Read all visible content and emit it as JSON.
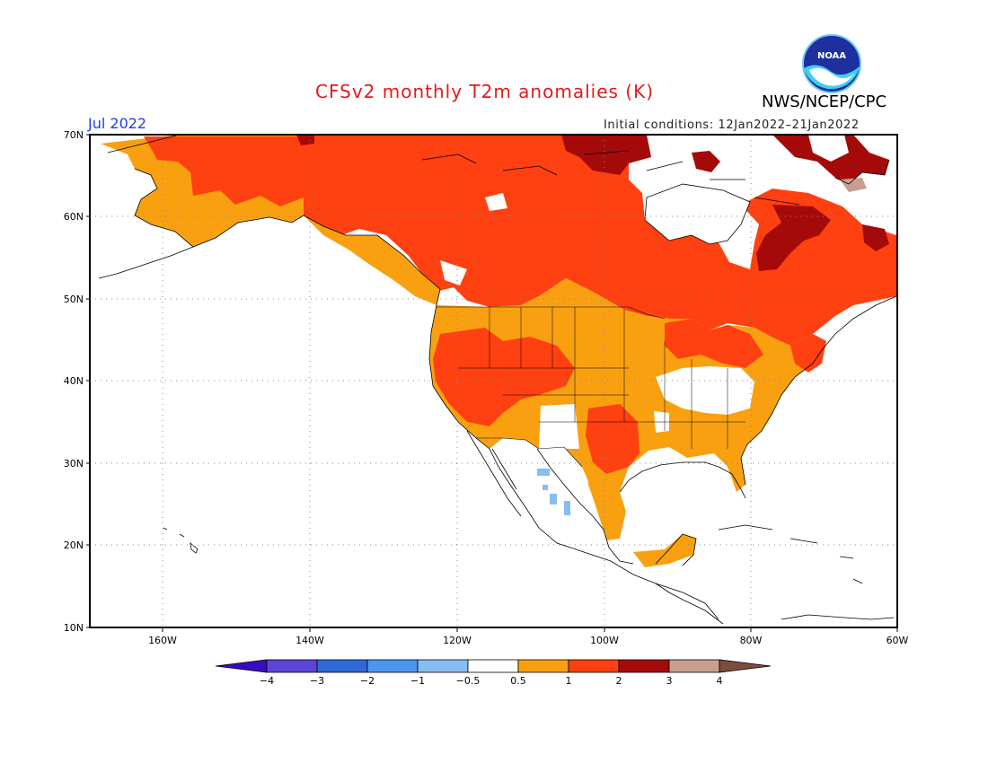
{
  "title": "CFSv2 monthly T2m anomalies (K)",
  "organization": "NWS/NCEP/CPC",
  "valid_month": "Jul 2022",
  "initial_conditions": "Initial conditions: 12Jan2022–21Jan2022",
  "logo_text": "NOAA",
  "map": {
    "lat_labels": [
      "70N",
      "60N",
      "50N",
      "40N",
      "30N",
      "20N",
      "10N"
    ],
    "lon_labels": [
      "160W",
      "140W",
      "120W",
      "100W",
      "80W",
      "60W"
    ],
    "grid": true
  },
  "colorbar": {
    "labels": [
      "−4",
      "−3",
      "−2",
      "−1",
      "−0.5",
      "0.5",
      "1",
      "2",
      "3",
      "4"
    ],
    "colors": [
      "#3a0cc0",
      "#5b45d6",
      "#2f69d6",
      "#4b96ee",
      "#86bdf2",
      "#ffffff",
      "#f9a010",
      "#ff4010",
      "#a50a0a",
      "#c8a090",
      "#7a4d40"
    ]
  }
}
